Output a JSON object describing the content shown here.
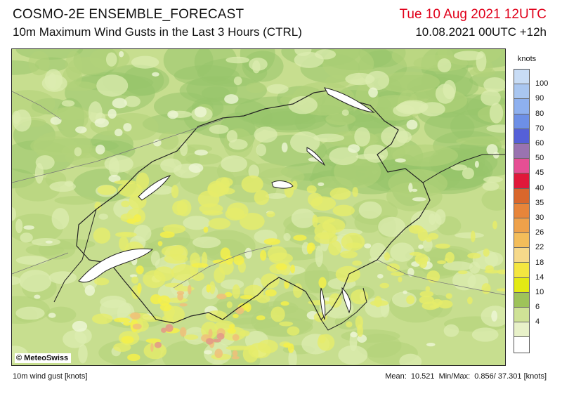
{
  "header": {
    "title": "COSMO-2E ENSEMBLE_FORECAST",
    "subtitle": "10m Maximum Wind Gusts in the Last 3 Hours (CTRL)",
    "valid_time": "Tue 10 Aug 2021 12UTC",
    "run_time": "10.08.2021 00UTC +12h"
  },
  "map": {
    "copyright": "© MeteoSwiss",
    "field_colors": {
      "background": "#c7de8f",
      "darker_green": "#98c46b",
      "mid_green": "#b3d27a",
      "light_green": "#dcecb0",
      "pale": "#eef6d6",
      "yellow_green": "#e6ec6a",
      "yellow": "#f5f04a",
      "orange": "#f0c07a",
      "salmon": "#e39a86"
    }
  },
  "legend": {
    "unit": "knots",
    "levels": [
      {
        "label": "100",
        "color": "#c8dcf5"
      },
      {
        "label": "90",
        "color": "#a9c6f0"
      },
      {
        "label": "80",
        "color": "#8eb0ef"
      },
      {
        "label": "70",
        "color": "#6d8fe6"
      },
      {
        "label": "60",
        "color": "#5560d8"
      },
      {
        "label": "50",
        "color": "#9a73b0"
      },
      {
        "label": "45",
        "color": "#e64f94"
      },
      {
        "label": "40",
        "color": "#e0183a"
      },
      {
        "label": "35",
        "color": "#d9672c"
      },
      {
        "label": "30",
        "color": "#e7853a"
      },
      {
        "label": "26",
        "color": "#eea14a"
      },
      {
        "label": "22",
        "color": "#f3bd5a"
      },
      {
        "label": "18",
        "color": "#f6d98a"
      },
      {
        "label": "14",
        "color": "#f4e640"
      },
      {
        "label": "10",
        "color": "#e3ea14"
      },
      {
        "label": "6",
        "color": "#9ec35a"
      },
      {
        "label": "4",
        "color": "#cfe296"
      },
      {
        "label": "",
        "color": "#e8f1c8"
      },
      {
        "label": "",
        "color": "#ffffff"
      }
    ]
  },
  "footer": {
    "variable": "10m wind gust [knots]",
    "mean_label": "Mean:",
    "mean_value": "10.521",
    "minmax_label": "Min/Max:",
    "minmax_value": "0.856/ 37.301 [knots]"
  }
}
